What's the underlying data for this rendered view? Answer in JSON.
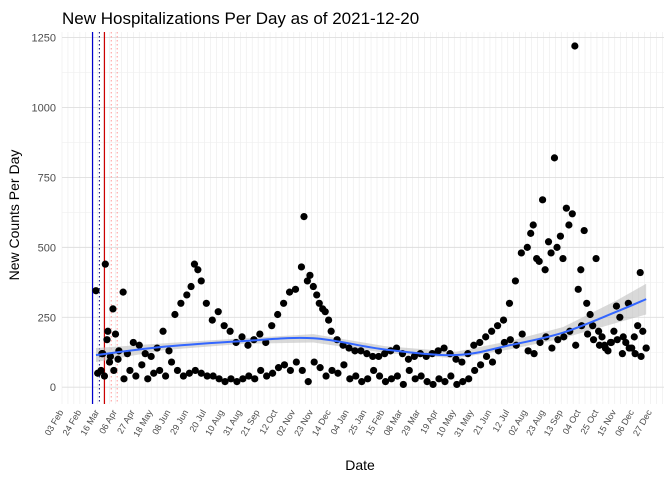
{
  "chart_data": {
    "type": "scatter",
    "title": "New Hospitalizations Per Day as of 2021-12-20",
    "xlabel": "Date",
    "ylabel": "New Counts Per Day",
    "ylim": [
      -60,
      1270
    ],
    "xlim": [
      "2020-02-01",
      "2022-01-10"
    ],
    "y_ticks": [
      0,
      250,
      500,
      750,
      1000,
      1250
    ],
    "x_ticks": [
      {
        "date": "2020-02-03",
        "label": "03 Feb"
      },
      {
        "date": "2020-02-24",
        "label": "24 Feb"
      },
      {
        "date": "2020-03-16",
        "label": "16 Mar"
      },
      {
        "date": "2020-04-06",
        "label": "06 Apr"
      },
      {
        "date": "2020-04-27",
        "label": "27 Apr"
      },
      {
        "date": "2020-05-18",
        "label": "18 May"
      },
      {
        "date": "2020-06-08",
        "label": "08 Jun"
      },
      {
        "date": "2020-06-29",
        "label": "29 Jun"
      },
      {
        "date": "2020-07-20",
        "label": "20 Jul"
      },
      {
        "date": "2020-08-10",
        "label": "10 Aug"
      },
      {
        "date": "2020-08-31",
        "label": "31 Aug"
      },
      {
        "date": "2020-09-21",
        "label": "21 Sep"
      },
      {
        "date": "2020-10-12",
        "label": "12 Oct"
      },
      {
        "date": "2020-11-02",
        "label": "02 Nov"
      },
      {
        "date": "2020-11-23",
        "label": "23 Nov"
      },
      {
        "date": "2020-12-14",
        "label": "14 Dec"
      },
      {
        "date": "2021-01-04",
        "label": "04 Jan"
      },
      {
        "date": "2021-01-25",
        "label": "25 Jan"
      },
      {
        "date": "2021-02-15",
        "label": "15 Feb"
      },
      {
        "date": "2021-03-08",
        "label": "08 Mar"
      },
      {
        "date": "2021-03-29",
        "label": "29 Mar"
      },
      {
        "date": "2021-04-19",
        "label": "19 Apr"
      },
      {
        "date": "2021-05-10",
        "label": "10 May"
      },
      {
        "date": "2021-05-31",
        "label": "31 May"
      },
      {
        "date": "2021-06-21",
        "label": "21 Jun"
      },
      {
        "date": "2021-07-12",
        "label": "12 Jul"
      },
      {
        "date": "2021-08-02",
        "label": "02 Aug"
      },
      {
        "date": "2021-08-23",
        "label": "23 Aug"
      },
      {
        "date": "2021-09-13",
        "label": "13 Sep"
      },
      {
        "date": "2021-10-04",
        "label": "04 Oct"
      },
      {
        "date": "2021-10-25",
        "label": "25 Oct"
      },
      {
        "date": "2021-11-15",
        "label": "15 Nov"
      },
      {
        "date": "2021-12-06",
        "label": "06 Dec"
      },
      {
        "date": "2021-12-27",
        "label": "27 Dec"
      }
    ],
    "vertical_lines": [
      {
        "date": "2020-03-08",
        "color": "#0000cc",
        "style": "solid"
      },
      {
        "date": "2020-03-16",
        "color": "#000080",
        "style": "dotted"
      },
      {
        "date": "2020-03-22",
        "color": "#cc0000",
        "style": "solid"
      },
      {
        "date": "2020-03-30",
        "color": "#ff9999",
        "style": "dotted"
      },
      {
        "date": "2020-04-06",
        "color": "#ff9999",
        "style": "dotted"
      }
    ],
    "series": [
      {
        "x": [
          "2020-03-12",
          "2020-03-18",
          "2020-03-20",
          "2020-03-23",
          "2020-03-26",
          "2020-03-29",
          "2020-04-01",
          "2020-04-04",
          "2020-04-08",
          "2020-04-13",
          "2020-04-18",
          "2020-04-25",
          "2020-05-02",
          "2020-05-09",
          "2020-05-16",
          "2020-05-23",
          "2020-05-30",
          "2020-06-06",
          "2020-06-13",
          "2020-06-20",
          "2020-06-27",
          "2020-07-02",
          "2020-07-06",
          "2020-07-10",
          "2020-07-14",
          "2020-07-20",
          "2020-07-27",
          "2020-08-03",
          "2020-08-10",
          "2020-08-17",
          "2020-08-24",
          "2020-08-31",
          "2020-09-07",
          "2020-09-14",
          "2020-09-21",
          "2020-09-28",
          "2020-10-05",
          "2020-10-12",
          "2020-10-19",
          "2020-10-26",
          "2020-11-02",
          "2020-11-09",
          "2020-11-12",
          "2020-11-16",
          "2020-11-19",
          "2020-11-23",
          "2020-11-27",
          "2020-11-30",
          "2020-12-04",
          "2020-12-07",
          "2020-12-11",
          "2020-12-14",
          "2020-12-21",
          "2020-12-28",
          "2021-01-04",
          "2021-01-11",
          "2021-01-18",
          "2021-01-25",
          "2021-02-01",
          "2021-02-08",
          "2021-02-15",
          "2021-02-22",
          "2021-03-01",
          "2021-03-08",
          "2021-03-15",
          "2021-03-22",
          "2021-03-29",
          "2021-04-05",
          "2021-04-12",
          "2021-04-19",
          "2021-04-26",
          "2021-05-03",
          "2021-05-10",
          "2021-05-17",
          "2021-05-24",
          "2021-05-31",
          "2021-06-07",
          "2021-06-14",
          "2021-06-21",
          "2021-06-28",
          "2021-07-05",
          "2021-07-12",
          "2021-07-19",
          "2021-07-26",
          "2021-08-02",
          "2021-08-06",
          "2021-08-09",
          "2021-08-13",
          "2021-08-16",
          "2021-08-20",
          "2021-08-23",
          "2021-08-27",
          "2021-08-30",
          "2021-09-03",
          "2021-09-06",
          "2021-09-10",
          "2021-09-13",
          "2021-09-17",
          "2021-09-20",
          "2021-09-24",
          "2021-09-27",
          "2021-10-01",
          "2021-10-04",
          "2021-10-08",
          "2021-10-11",
          "2021-10-15",
          "2021-10-18",
          "2021-10-22",
          "2021-10-25",
          "2021-10-29",
          "2021-11-01",
          "2021-11-05",
          "2021-11-08",
          "2021-11-12",
          "2021-11-15",
          "2021-11-19",
          "2021-11-22",
          "2021-11-26",
          "2021-11-29",
          "2021-12-03",
          "2021-12-06",
          "2021-12-10",
          "2021-12-13",
          "2021-12-16",
          "2021-12-20"
        ],
        "values": [
          345,
          60,
          120,
          440,
          200,
          110,
          280,
          190,
          130,
          340,
          120,
          160,
          150,
          120,
          110,
          140,
          200,
          130,
          260,
          300,
          330,
          360,
          440,
          420,
          380,
          300,
          240,
          270,
          220,
          200,
          160,
          180,
          150,
          170,
          190,
          160,
          220,
          260,
          300,
          340,
          350,
          430,
          610,
          380,
          400,
          360,
          330,
          300,
          280,
          270,
          240,
          200,
          170,
          150,
          140,
          130,
          130,
          120,
          110,
          110,
          120,
          130,
          140,
          120,
          100,
          110,
          120,
          110,
          120,
          130,
          140,
          120,
          100,
          90,
          120,
          150,
          160,
          180,
          200,
          220,
          240,
          300,
          380,
          480,
          500,
          550,
          580,
          460,
          450,
          670,
          420,
          520,
          480,
          820,
          500,
          540,
          460,
          640,
          580,
          620,
          1220,
          350,
          420,
          560,
          300,
          260,
          220,
          460,
          200,
          180,
          150,
          130,
          160,
          200,
          290,
          250,
          120,
          160,
          300,
          140,
          180,
          220,
          410,
          200,
          140
        ]
      },
      {
        "x": [
          "2020-03-14",
          "2020-03-19",
          "2020-03-22",
          "2020-03-25",
          "2020-03-28",
          "2020-04-02",
          "2020-04-07",
          "2020-04-14",
          "2020-04-21",
          "2020-04-28",
          "2020-05-05",
          "2020-05-12",
          "2020-05-19",
          "2020-05-26",
          "2020-06-02",
          "2020-06-09",
          "2020-06-16",
          "2020-06-23",
          "2020-06-30",
          "2020-07-07",
          "2020-07-14",
          "2020-07-21",
          "2020-07-28",
          "2020-08-04",
          "2020-08-11",
          "2020-08-18",
          "2020-08-25",
          "2020-09-01",
          "2020-09-08",
          "2020-09-15",
          "2020-09-22",
          "2020-09-29",
          "2020-10-06",
          "2020-10-13",
          "2020-10-20",
          "2020-10-27",
          "2020-11-03",
          "2020-11-10",
          "2020-11-17",
          "2020-11-24",
          "2020-12-01",
          "2020-12-08",
          "2020-12-15",
          "2020-12-22",
          "2020-12-29",
          "2021-01-05",
          "2021-01-12",
          "2021-01-19",
          "2021-01-26",
          "2021-02-02",
          "2021-02-09",
          "2021-02-16",
          "2021-02-23",
          "2021-03-02",
          "2021-03-09",
          "2021-03-16",
          "2021-03-23",
          "2021-03-30",
          "2021-04-06",
          "2021-04-13",
          "2021-04-20",
          "2021-04-27",
          "2021-05-04",
          "2021-05-11",
          "2021-05-18",
          "2021-05-25",
          "2021-06-01",
          "2021-06-08",
          "2021-06-15",
          "2021-06-22",
          "2021-06-29",
          "2021-07-06",
          "2021-07-13",
          "2021-07-20",
          "2021-07-27",
          "2021-08-03",
          "2021-08-10",
          "2021-08-17",
          "2021-08-24",
          "2021-08-31",
          "2021-09-07",
          "2021-09-14",
          "2021-09-21",
          "2021-09-28",
          "2021-10-05",
          "2021-10-12",
          "2021-10-19",
          "2021-10-26",
          "2021-11-02",
          "2021-11-09",
          "2021-11-16",
          "2021-11-23",
          "2021-11-30",
          "2021-12-07",
          "2021-12-14",
          "2021-12-20"
        ],
        "values": [
          50,
          120,
          40,
          170,
          90,
          60,
          100,
          30,
          60,
          40,
          80,
          30,
          50,
          60,
          40,
          90,
          60,
          40,
          50,
          60,
          50,
          40,
          40,
          30,
          20,
          30,
          20,
          30,
          40,
          30,
          60,
          40,
          50,
          70,
          80,
          60,
          90,
          60,
          20,
          90,
          70,
          40,
          60,
          50,
          80,
          30,
          40,
          20,
          30,
          60,
          40,
          20,
          30,
          40,
          10,
          60,
          30,
          40,
          20,
          10,
          30,
          20,
          40,
          10,
          20,
          30,
          60,
          80,
          110,
          90,
          130,
          160,
          170,
          150,
          190,
          130,
          120,
          160,
          180,
          140,
          170,
          180,
          200,
          150,
          220,
          190,
          170,
          150,
          140,
          160,
          170,
          180,
          140,
          120,
          110,
          140
        ]
      }
    ],
    "trend": {
      "x": [
        "2020-03-12",
        "2020-06-01",
        "2020-09-01",
        "2020-11-23",
        "2021-02-15",
        "2021-05-10",
        "2021-07-12",
        "2021-09-13",
        "2021-11-15",
        "2021-12-20"
      ],
      "values": [
        115,
        145,
        165,
        175,
        135,
        115,
        150,
        195,
        270,
        315
      ],
      "band_halfwidth": [
        25,
        12,
        10,
        15,
        12,
        12,
        15,
        20,
        40,
        55
      ],
      "color": "#3366ff",
      "band_color": "#bfbfbf"
    }
  }
}
